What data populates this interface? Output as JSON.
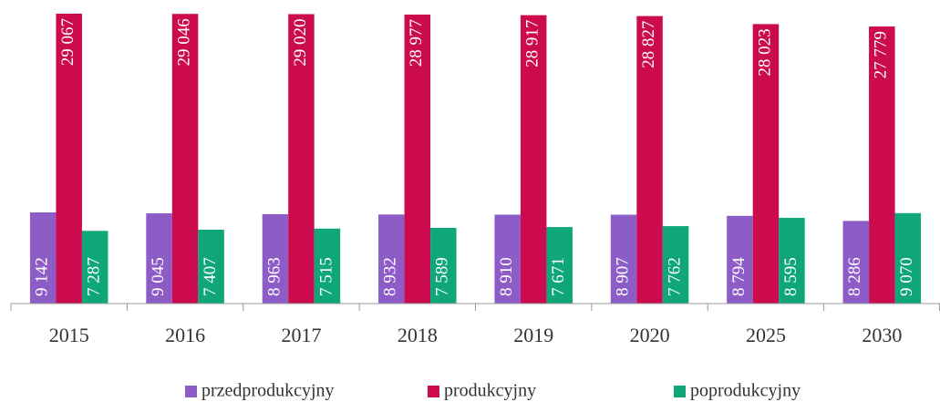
{
  "chart_data": {
    "type": "bar",
    "categories": [
      "2015",
      "2016",
      "2017",
      "2018",
      "2019",
      "2020",
      "2025",
      "2030"
    ],
    "series": [
      {
        "name": "przedprodukcyjny",
        "color": "#8e5cc6",
        "values": [
          9142,
          9045,
          8963,
          8932,
          8910,
          8907,
          8794,
          8286
        ],
        "value_labels": [
          "9 142",
          "9 045",
          "8 963",
          "8 932",
          "8 910",
          "8 907",
          "8 794",
          "8 286"
        ]
      },
      {
        "name": "produkcyjny",
        "color": "#cc0a4e",
        "values": [
          29067,
          29046,
          29020,
          28977,
          28917,
          28827,
          28023,
          27779
        ],
        "value_labels": [
          "29 067",
          "29 046",
          "29 020",
          "28 977",
          "28 917",
          "28 827",
          "28 023",
          "27 779"
        ]
      },
      {
        "name": "poprodukcyjny",
        "color": "#0fa67a",
        "values": [
          7287,
          7407,
          7515,
          7589,
          7671,
          7762,
          8595,
          9070
        ],
        "value_labels": [
          "7 287",
          "7 407",
          "7 515",
          "7 589",
          "7 671",
          "7 762",
          "8 595",
          "9 070"
        ]
      }
    ],
    "legend": "bottom"
  }
}
